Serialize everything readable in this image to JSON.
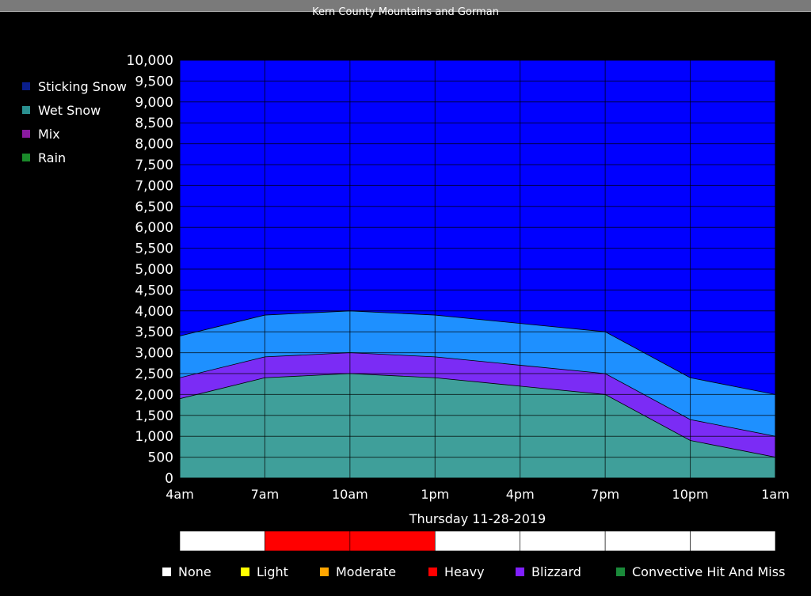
{
  "title": "Kern County Mountains and Gorman",
  "legend": [
    {
      "label": "Sticking Snow",
      "color": "#0a1e8c"
    },
    {
      "label": "Wet Snow",
      "color": "#2a9090"
    },
    {
      "label": "Mix",
      "color": "#8a1aa0"
    },
    {
      "label": "Rain",
      "color": "#1a8a2a"
    }
  ],
  "intensity_legend": [
    {
      "label": "None",
      "color": "#ffffff"
    },
    {
      "label": "Light",
      "color": "#ffff00"
    },
    {
      "label": "Moderate",
      "color": "#ffa500"
    },
    {
      "label": "Heavy",
      "color": "#ff0000"
    },
    {
      "label": "Blizzard",
      "color": "#8020ff"
    },
    {
      "label": "Convective Hit And Miss",
      "color": "#1a8a3a"
    }
  ],
  "colors": {
    "sticking_snow_fill": "#0000ff",
    "upper_band_fill": "#1e90ff",
    "mix_band_fill": "#7b2cf5",
    "lower_band_fill": "#3f9f9a",
    "grid": "#000000"
  },
  "chart_data": {
    "type": "area",
    "xlabel": "Thursday 11-28-2019",
    "ylabel": "",
    "categories": [
      "4am",
      "7am",
      "10am",
      "1pm",
      "4pm",
      "7pm",
      "10pm",
      "1am"
    ],
    "ylim": [
      0,
      10000
    ],
    "yticks": [
      "0",
      "500",
      "1,000",
      "1,500",
      "2,000",
      "2,500",
      "3,000",
      "3,500",
      "4,000",
      "4,500",
      "5,000",
      "5,500",
      "6,000",
      "6,500",
      "7,000",
      "7,500",
      "8,000",
      "8,500",
      "9,000",
      "9,500",
      "10,000"
    ],
    "series": [
      {
        "values": [
          1900,
          2400,
          2500,
          2400,
          2200,
          2000,
          900,
          500
        ]
      },
      {
        "values": [
          2400,
          2900,
          3000,
          2900,
          2700,
          2500,
          1400,
          1000
        ]
      },
      {
        "values": [
          3400,
          3900,
          4000,
          3900,
          3700,
          3500,
          2400,
          2000
        ]
      }
    ],
    "intensity_bar": [
      "None",
      "Heavy",
      "Heavy",
      "None",
      "None",
      "None",
      "None"
    ],
    "grid": true
  }
}
